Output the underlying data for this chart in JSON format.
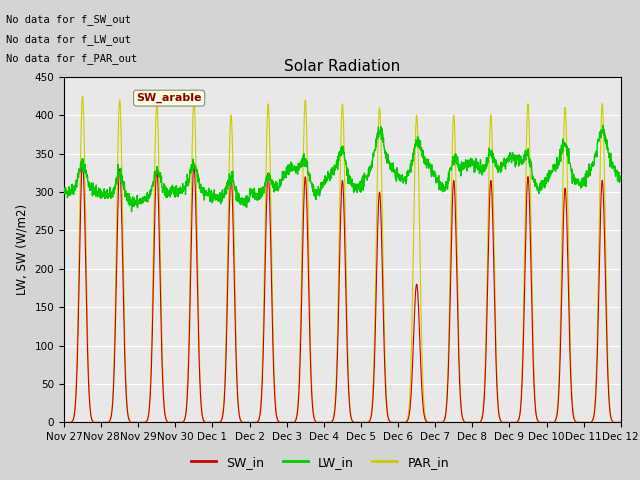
{
  "title": "Solar Radiation",
  "ylabel": "LW, SW (W/m2)",
  "ylim": [
    0,
    450
  ],
  "yticks": [
    0,
    50,
    100,
    150,
    200,
    250,
    300,
    350,
    400,
    450
  ],
  "sw_color": "#cc0000",
  "lw_color": "#00cc00",
  "par_color": "#cccc00",
  "legend_entries": [
    "SW_in",
    "LW_in",
    "PAR_in"
  ],
  "annotations": [
    "No data for f_SW_out",
    "No data for f_LW_out",
    "No data for f_PAR_out"
  ],
  "tooltip_label": "SW_arable",
  "tick_labels": [
    "Nov 27",
    "Nov 28",
    "Nov 29",
    "Nov 30",
    "Dec 1",
    "Dec 2",
    "Dec 3",
    "Dec 4",
    "Dec 5",
    "Dec 6",
    "Dec 7",
    "Dec 8",
    "Dec 9",
    "Dec 10",
    "Dec 11",
    "Dec 12"
  ],
  "par_peaks": [
    425,
    420,
    417,
    420,
    400,
    415,
    420,
    415,
    410,
    400,
    400,
    400,
    415,
    410,
    415
  ],
  "sw_peaks": [
    340,
    330,
    330,
    335,
    320,
    325,
    320,
    315,
    300,
    180,
    315,
    315,
    320,
    305,
    315
  ]
}
